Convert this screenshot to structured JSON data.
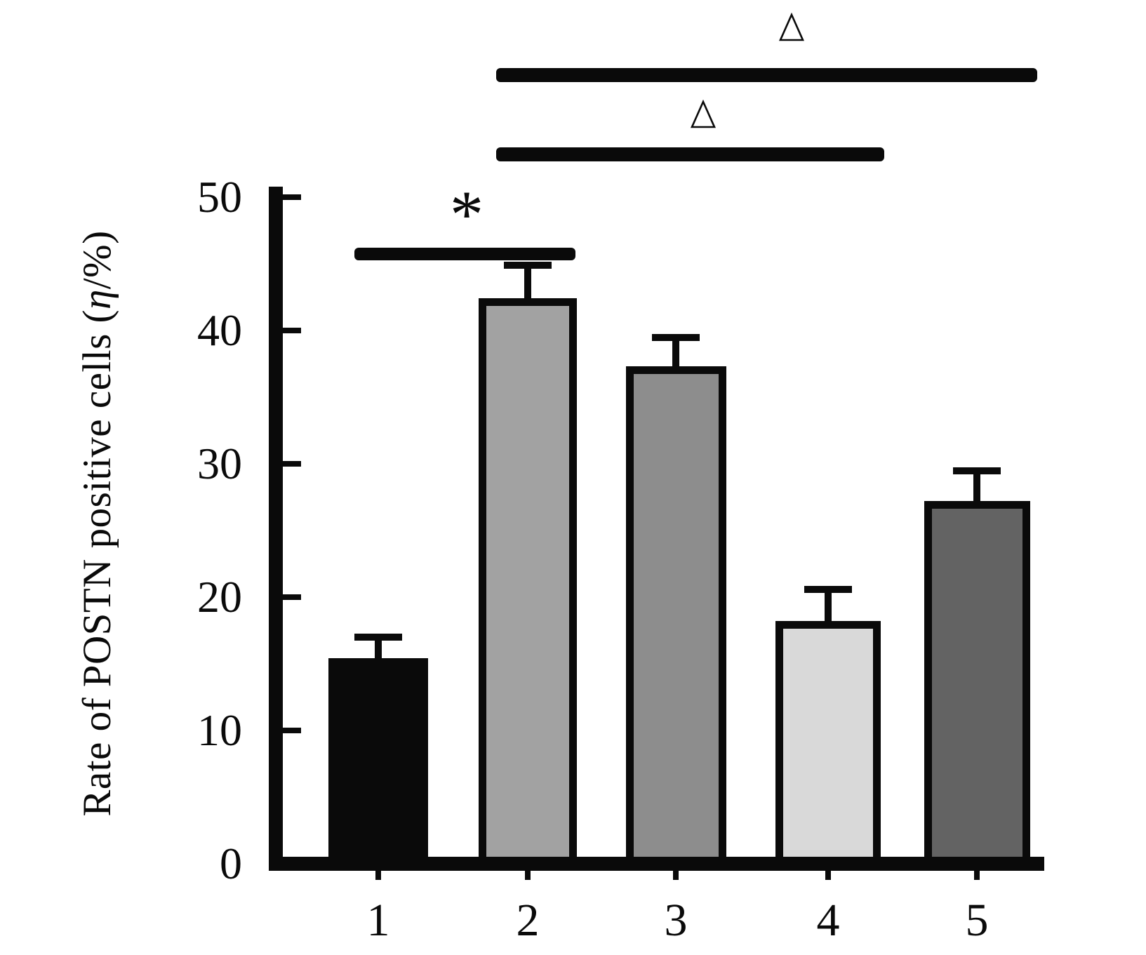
{
  "figure": {
    "background": "#ffffff",
    "ylabel_prefix": "Rate of POSTN positive cells (",
    "ylabel_eta": "η",
    "ylabel_suffix": "/%)"
  },
  "chart_data": {
    "type": "bar",
    "title": "",
    "xlabel": "",
    "ylabel": "Rate of POSTN positive cells (η/%)",
    "categories": [
      "1",
      "2",
      "3",
      "4",
      "5"
    ],
    "values": [
      15.4,
      42.4,
      37.3,
      18.2,
      27.2
    ],
    "errors": [
      1.6,
      2.5,
      2.2,
      2.4,
      2.3
    ],
    "bar_fill_colors": [
      "#0a0a0a",
      "#a2a2a2",
      "#8d8d8d",
      "#d9d9d9",
      "#636363"
    ],
    "bar_border_color": "#0a0a0a",
    "axis_color": "#0a0a0a",
    "ylim": [
      0,
      50
    ],
    "yticks": [
      0,
      10,
      20,
      30,
      40,
      50
    ],
    "grid": false,
    "legend": null,
    "error_bar_style": "cap-top-only",
    "annotations": [
      {
        "symbol": "△",
        "from": "2",
        "to": "5",
        "meaning": "significance-marker"
      },
      {
        "symbol": "△",
        "from": "2",
        "to": "4",
        "meaning": "significance-marker"
      },
      {
        "symbol": "*",
        "from": "1",
        "to": "2",
        "meaning": "significance-marker"
      }
    ]
  }
}
